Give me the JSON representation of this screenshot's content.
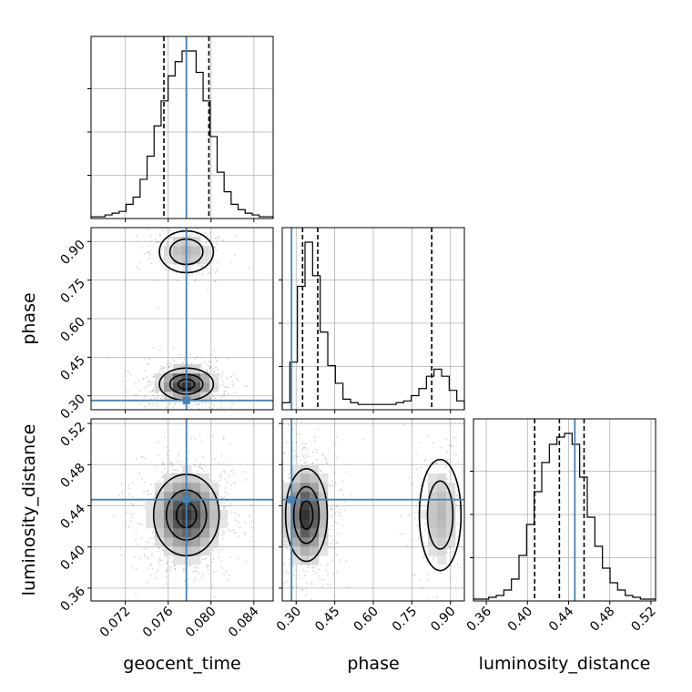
{
  "chart_data": {
    "type": "corner",
    "parameters": [
      "geocent_time",
      "phase",
      "luminosity_distance"
    ],
    "axis_labels": {
      "geocent_time": "geocent_time",
      "phase": "phase",
      "luminosity_distance": "luminosity_distance"
    },
    "ranges": {
      "geocent_time": [
        0.0688,
        0.0858
      ],
      "phase": [
        0.246,
        0.954
      ],
      "luminosity_distance": [
        0.3475,
        0.5245
      ]
    },
    "ticks": {
      "geocent_time": [
        "0.072",
        "0.076",
        "0.080",
        "0.084"
      ],
      "phase": [
        "0.30",
        "0.45",
        "0.60",
        "0.75",
        "0.90"
      ],
      "luminosity_distance": [
        "0.36",
        "0.40",
        "0.44",
        "0.48",
        "0.52"
      ]
    },
    "truths": {
      "geocent_time": 0.0777,
      "phase": 0.282,
      "luminosity_distance": 0.446
    },
    "quantiles": {
      "geocent_time": [
        0.0756,
        0.0777,
        0.0798
      ],
      "phase": [
        0.325,
        0.384,
        0.827
      ],
      "luminosity_distance": [
        0.407,
        0.431,
        0.455
      ]
    },
    "histograms": {
      "geocent_time": [
        1,
        1,
        2,
        3,
        4,
        8,
        12,
        22,
        35,
        52,
        66,
        80,
        88,
        94,
        94,
        82,
        66,
        46,
        26,
        15,
        8,
        5,
        3,
        2,
        1,
        1
      ],
      "phase": [
        4,
        27,
        70,
        95,
        76,
        44,
        25,
        15,
        6,
        4,
        3,
        3,
        3,
        3,
        3,
        4,
        5,
        8,
        12,
        19,
        23,
        19,
        11,
        5
      ],
      "luminosity_distance": [
        1,
        1,
        2,
        3,
        6,
        12,
        25,
        42,
        60,
        76,
        86,
        90,
        92,
        86,
        68,
        46,
        30,
        18,
        10,
        6,
        3,
        2,
        1,
        1
      ]
    },
    "density_2d": {
      "phase_vs_geocent_time": {
        "modes": [
          {
            "x": 0.0777,
            "y": 0.345,
            "sx": 0.0014,
            "sy": 0.035,
            "w": 1.0
          },
          {
            "x": 0.0777,
            "y": 0.86,
            "sx": 0.0014,
            "sy": 0.045,
            "w": 0.35
          }
        ]
      },
      "luminosity_distance_vs_geocent_time": {
        "modes": [
          {
            "x": 0.0777,
            "y": 0.431,
            "sx": 0.0017,
            "sy": 0.022,
            "w": 1.0
          }
        ]
      },
      "luminosity_distance_vs_phase": {
        "modes": [
          {
            "x": 0.34,
            "y": 0.431,
            "sx": 0.045,
            "sy": 0.025,
            "w": 1.0
          },
          {
            "x": 0.86,
            "y": 0.431,
            "sx": 0.045,
            "sy": 0.03,
            "w": 0.35
          }
        ]
      }
    },
    "truth_color": "#4682b4",
    "line_color": "#000000",
    "grid": true
  }
}
